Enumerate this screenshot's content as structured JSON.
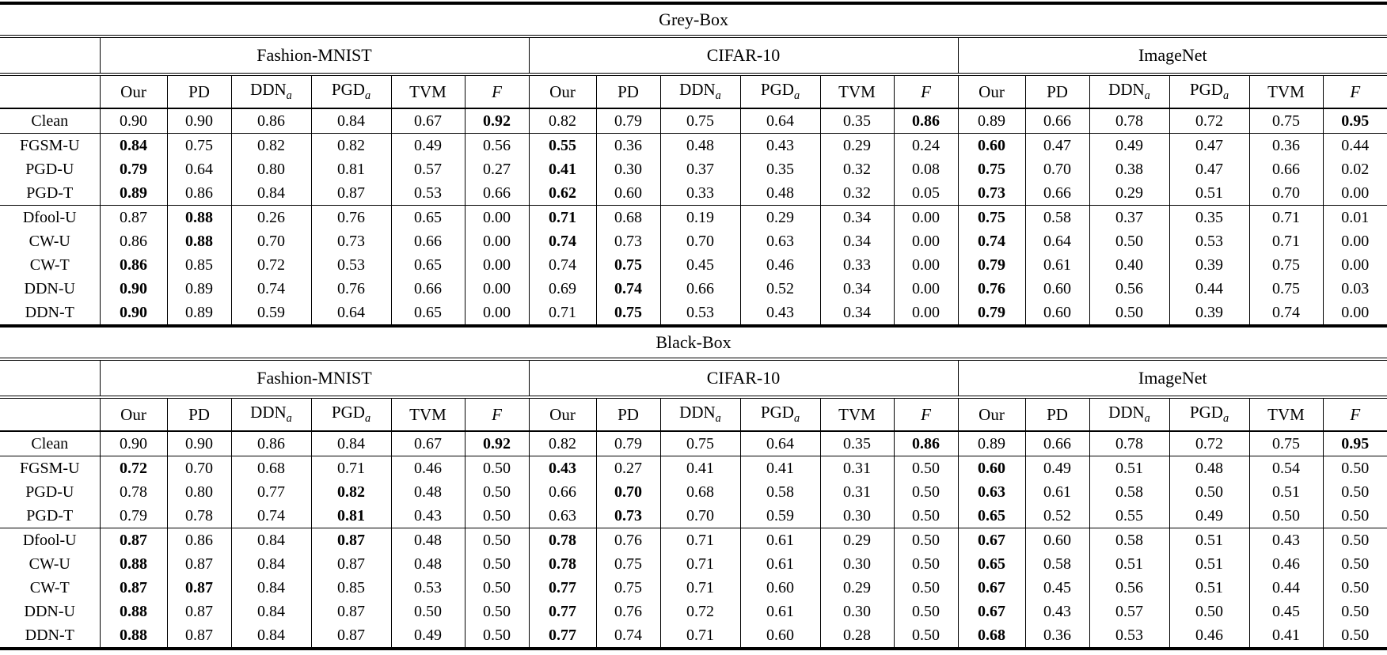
{
  "page": {
    "background": "#ffffff",
    "text_color": "#000000",
    "line_color": "#000000"
  },
  "sections": [
    {
      "title": "Grey-Box",
      "datasets": [
        "Fashion-MNIST",
        "CIFAR-10",
        "ImageNet"
      ],
      "columns": [
        {
          "label": "Our"
        },
        {
          "label": "PD"
        },
        {
          "label": "DDN",
          "sub": "a"
        },
        {
          "label": "PGD",
          "sub": "a"
        },
        {
          "label": "TVM"
        },
        {
          "label": "F",
          "italic": true
        }
      ],
      "rule_after_rows": [
        0,
        3
      ],
      "rows": [
        {
          "label": "Clean",
          "values": [
            "0.90",
            "0.90",
            "0.86",
            "0.84",
            "0.67",
            "0.92",
            "0.82",
            "0.79",
            "0.75",
            "0.64",
            "0.35",
            "0.86",
            "0.89",
            "0.66",
            "0.78",
            "0.72",
            "0.75",
            "0.95"
          ],
          "bold": [
            5,
            11,
            17
          ]
        },
        {
          "label": "FGSM-U",
          "values": [
            "0.84",
            "0.75",
            "0.82",
            "0.82",
            "0.49",
            "0.56",
            "0.55",
            "0.36",
            "0.48",
            "0.43",
            "0.29",
            "0.24",
            "0.60",
            "0.47",
            "0.49",
            "0.47",
            "0.36",
            "0.44"
          ],
          "bold": [
            0,
            6,
            12
          ]
        },
        {
          "label": "PGD-U",
          "values": [
            "0.79",
            "0.64",
            "0.80",
            "0.81",
            "0.57",
            "0.27",
            "0.41",
            "0.30",
            "0.37",
            "0.35",
            "0.32",
            "0.08",
            "0.75",
            "0.70",
            "0.38",
            "0.47",
            "0.66",
            "0.02"
          ],
          "bold": [
            0,
            6,
            12
          ]
        },
        {
          "label": "PGD-T",
          "values": [
            "0.89",
            "0.86",
            "0.84",
            "0.87",
            "0.53",
            "0.66",
            "0.62",
            "0.60",
            "0.33",
            "0.48",
            "0.32",
            "0.05",
            "0.73",
            "0.66",
            "0.29",
            "0.51",
            "0.70",
            "0.00"
          ],
          "bold": [
            0,
            6,
            12
          ]
        },
        {
          "label": "Dfool-U",
          "values": [
            "0.87",
            "0.88",
            "0.26",
            "0.76",
            "0.65",
            "0.00",
            "0.71",
            "0.68",
            "0.19",
            "0.29",
            "0.34",
            "0.00",
            "0.75",
            "0.58",
            "0.37",
            "0.35",
            "0.71",
            "0.01"
          ],
          "bold": [
            1,
            6,
            12
          ]
        },
        {
          "label": "CW-U",
          "values": [
            "0.86",
            "0.88",
            "0.70",
            "0.73",
            "0.66",
            "0.00",
            "0.74",
            "0.73",
            "0.70",
            "0.63",
            "0.34",
            "0.00",
            "0.74",
            "0.64",
            "0.50",
            "0.53",
            "0.71",
            "0.00"
          ],
          "bold": [
            1,
            6,
            12
          ]
        },
        {
          "label": "CW-T",
          "values": [
            "0.86",
            "0.85",
            "0.72",
            "0.53",
            "0.65",
            "0.00",
            "0.74",
            "0.75",
            "0.45",
            "0.46",
            "0.33",
            "0.00",
            "0.79",
            "0.61",
            "0.40",
            "0.39",
            "0.75",
            "0.00"
          ],
          "bold": [
            0,
            7,
            12
          ]
        },
        {
          "label": "DDN-U",
          "values": [
            "0.90",
            "0.89",
            "0.74",
            "0.76",
            "0.66",
            "0.00",
            "0.69",
            "0.74",
            "0.66",
            "0.52",
            "0.34",
            "0.00",
            "0.76",
            "0.60",
            "0.56",
            "0.44",
            "0.75",
            "0.03"
          ],
          "bold": [
            0,
            7,
            12
          ]
        },
        {
          "label": "DDN-T",
          "values": [
            "0.90",
            "0.89",
            "0.59",
            "0.64",
            "0.65",
            "0.00",
            "0.71",
            "0.75",
            "0.53",
            "0.43",
            "0.34",
            "0.00",
            "0.79",
            "0.60",
            "0.50",
            "0.39",
            "0.74",
            "0.00"
          ],
          "bold": [
            0,
            7,
            12
          ]
        }
      ]
    },
    {
      "title": "Black-Box",
      "datasets": [
        "Fashion-MNIST",
        "CIFAR-10",
        "ImageNet"
      ],
      "columns": [
        {
          "label": "Our"
        },
        {
          "label": "PD"
        },
        {
          "label": "DDN",
          "sub": "a"
        },
        {
          "label": "PGD",
          "sub": "a"
        },
        {
          "label": "TVM"
        },
        {
          "label": "F",
          "italic": true
        }
      ],
      "rule_after_rows": [
        0,
        3
      ],
      "rows": [
        {
          "label": "Clean",
          "values": [
            "0.90",
            "0.90",
            "0.86",
            "0.84",
            "0.67",
            "0.92",
            "0.82",
            "0.79",
            "0.75",
            "0.64",
            "0.35",
            "0.86",
            "0.89",
            "0.66",
            "0.78",
            "0.72",
            "0.75",
            "0.95"
          ],
          "bold": [
            5,
            11,
            17
          ]
        },
        {
          "label": "FGSM-U",
          "values": [
            "0.72",
            "0.70",
            "0.68",
            "0.71",
            "0.46",
            "0.50",
            "0.43",
            "0.27",
            "0.41",
            "0.41",
            "0.31",
            "0.50",
            "0.60",
            "0.49",
            "0.51",
            "0.48",
            "0.54",
            "0.50"
          ],
          "bold": [
            0,
            6,
            12
          ]
        },
        {
          "label": "PGD-U",
          "values": [
            "0.78",
            "0.80",
            "0.77",
            "0.82",
            "0.48",
            "0.50",
            "0.66",
            "0.70",
            "0.68",
            "0.58",
            "0.31",
            "0.50",
            "0.63",
            "0.61",
            "0.58",
            "0.50",
            "0.51",
            "0.50"
          ],
          "bold": [
            3,
            7,
            12
          ]
        },
        {
          "label": "PGD-T",
          "values": [
            "0.79",
            "0.78",
            "0.74",
            "0.81",
            "0.43",
            "0.50",
            "0.63",
            "0.73",
            "0.70",
            "0.59",
            "0.30",
            "0.50",
            "0.65",
            "0.52",
            "0.55",
            "0.49",
            "0.50",
            "0.50"
          ],
          "bold": [
            3,
            7,
            12
          ]
        },
        {
          "label": "Dfool-U",
          "values": [
            "0.87",
            "0.86",
            "0.84",
            "0.87",
            "0.48",
            "0.50",
            "0.78",
            "0.76",
            "0.71",
            "0.61",
            "0.29",
            "0.50",
            "0.67",
            "0.60",
            "0.58",
            "0.51",
            "0.43",
            "0.50"
          ],
          "bold": [
            0,
            3,
            6,
            12
          ]
        },
        {
          "label": "CW-U",
          "values": [
            "0.88",
            "0.87",
            "0.84",
            "0.87",
            "0.48",
            "0.50",
            "0.78",
            "0.75",
            "0.71",
            "0.61",
            "0.30",
            "0.50",
            "0.65",
            "0.58",
            "0.51",
            "0.51",
            "0.46",
            "0.50"
          ],
          "bold": [
            0,
            6,
            12
          ]
        },
        {
          "label": "CW-T",
          "values": [
            "0.87",
            "0.87",
            "0.84",
            "0.85",
            "0.53",
            "0.50",
            "0.77",
            "0.75",
            "0.71",
            "0.60",
            "0.29",
            "0.50",
            "0.67",
            "0.45",
            "0.56",
            "0.51",
            "0.44",
            "0.50"
          ],
          "bold": [
            0,
            1,
            6,
            12
          ]
        },
        {
          "label": "DDN-U",
          "values": [
            "0.88",
            "0.87",
            "0.84",
            "0.87",
            "0.50",
            "0.50",
            "0.77",
            "0.76",
            "0.72",
            "0.61",
            "0.30",
            "0.50",
            "0.67",
            "0.43",
            "0.57",
            "0.50",
            "0.45",
            "0.50"
          ],
          "bold": [
            0,
            6,
            12
          ]
        },
        {
          "label": "DDN-T",
          "values": [
            "0.88",
            "0.87",
            "0.84",
            "0.87",
            "0.49",
            "0.50",
            "0.77",
            "0.74",
            "0.71",
            "0.60",
            "0.28",
            "0.50",
            "0.68",
            "0.36",
            "0.53",
            "0.46",
            "0.41",
            "0.50"
          ],
          "bold": [
            0,
            6,
            12
          ]
        }
      ]
    }
  ],
  "layout_hints": {
    "label_col_width": 126,
    "group_col_widths": [
      85,
      81,
      101,
      101,
      93,
      81
    ]
  }
}
